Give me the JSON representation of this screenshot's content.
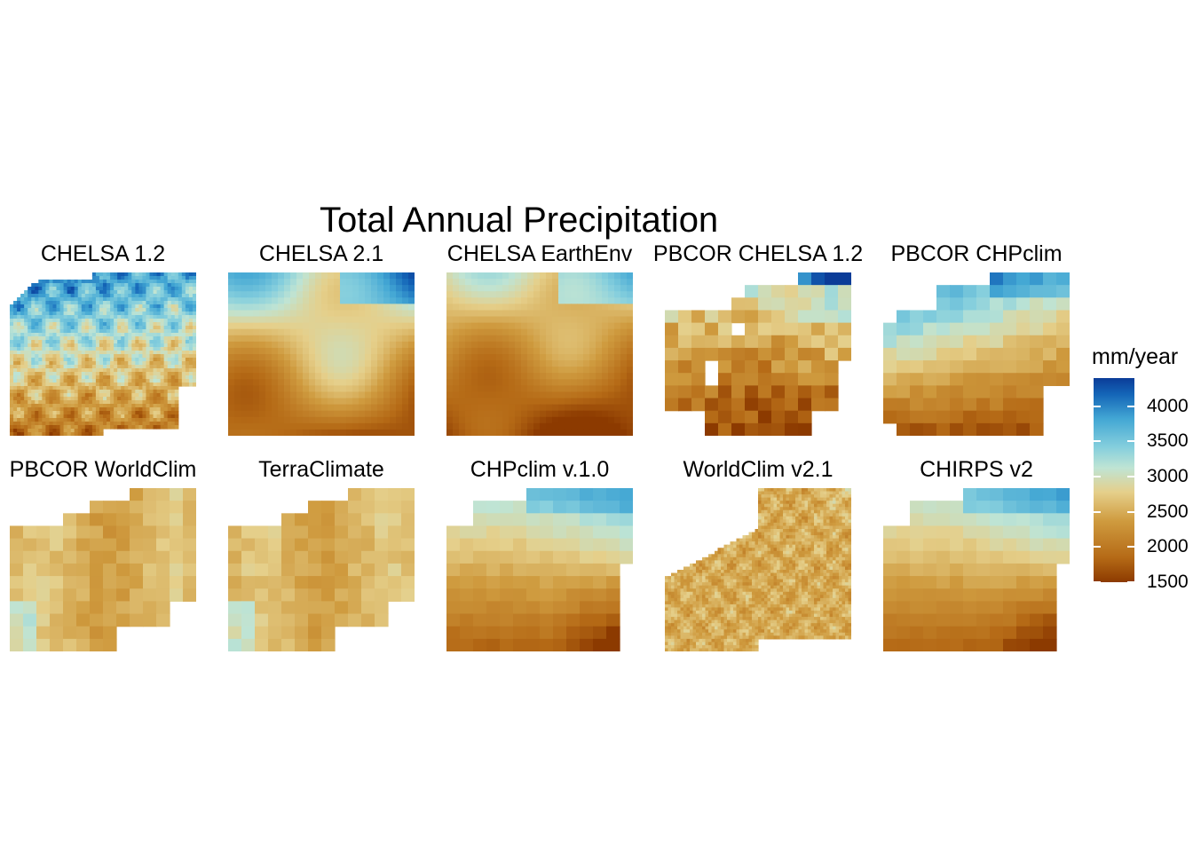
{
  "chart_data": {
    "type": "heatmap",
    "title": "Total Annual Precipitation",
    "panels": [
      {
        "name": "CHELSA 1.2",
        "pattern": "north-wet-detailed"
      },
      {
        "name": "CHELSA 2.1",
        "pattern": "smooth-north-wet"
      },
      {
        "name": "CHELSA EarthEnv",
        "pattern": "smooth-north-wet-pale"
      },
      {
        "name": "PBCOR CHELSA 1.2",
        "pattern": "coarse-blocky-north-wet"
      },
      {
        "name": "PBCOR CHPclim",
        "pattern": "coarse-west-wet"
      },
      {
        "name": "PBCOR WorldClim",
        "pattern": "coarse-dry-uniform"
      },
      {
        "name": "TerraClimate",
        "pattern": "coarse-dry-uniform"
      },
      {
        "name": "CHPclim v.1.0",
        "pattern": "coarse-north-wet-se-dry"
      },
      {
        "name": "WorldClim v2.1",
        "pattern": "fine-dry-detailed"
      },
      {
        "name": "CHIRPS v2",
        "pattern": "coarse-north-wet-se-dry"
      }
    ],
    "legend": {
      "title": "mm/year",
      "ticks": [
        1500,
        2000,
        2500,
        3000,
        3500,
        4000
      ],
      "range": [
        1500,
        4400
      ],
      "placement": "right"
    },
    "colors": {
      "dry": "#8c3a00",
      "mid": "#e5cf8a",
      "wet": "#0b3c98"
    }
  }
}
